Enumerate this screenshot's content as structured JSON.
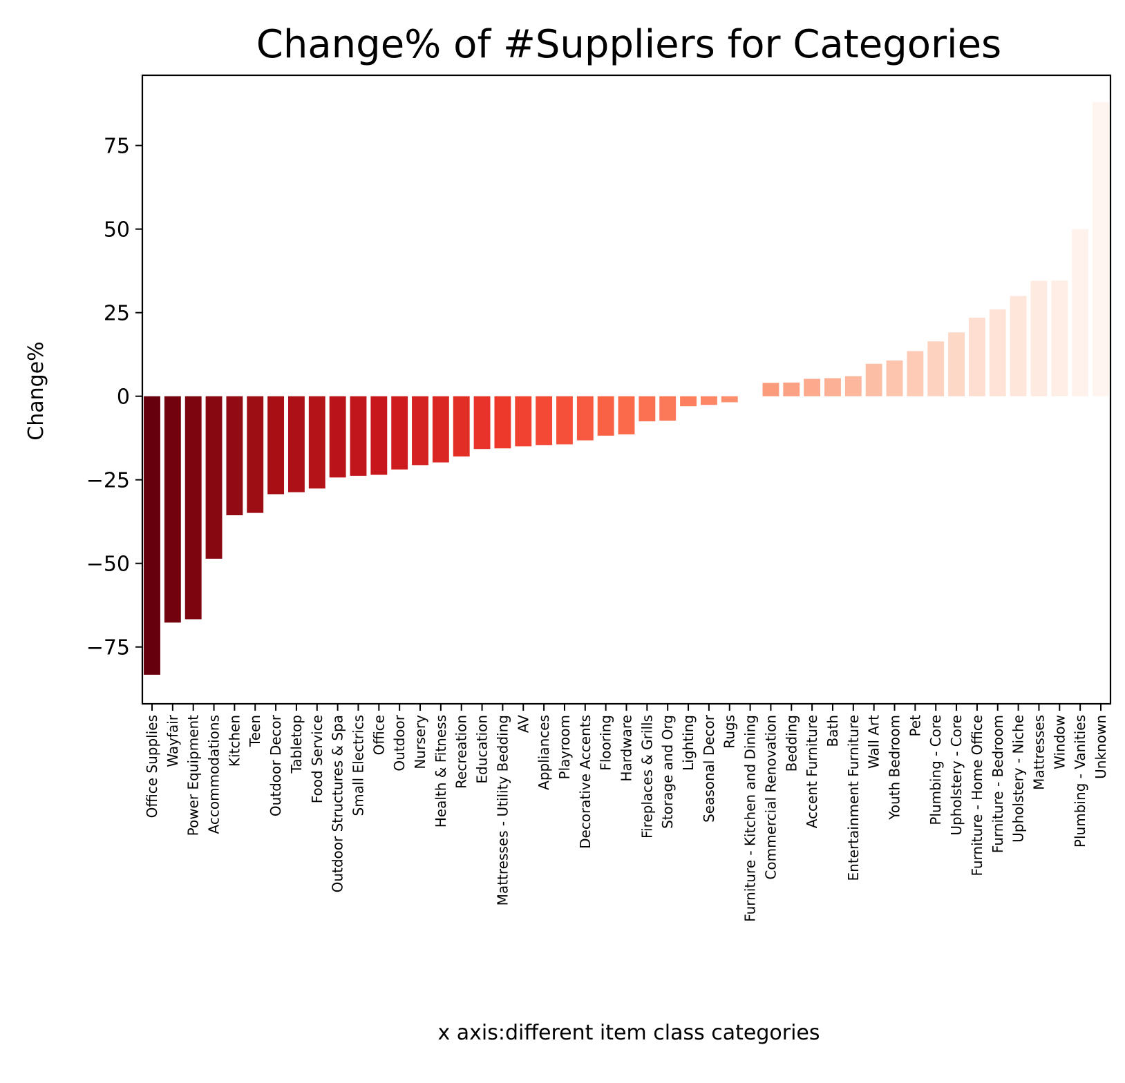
{
  "chart_data": {
    "type": "bar",
    "title": "Change% of #Suppliers for Categories",
    "xlabel": "x axis:different item class categories",
    "ylabel": "Change%",
    "ylim": [
      -92,
      96
    ],
    "yticks": [
      -75,
      -50,
      -25,
      0,
      25,
      50,
      75
    ],
    "ytick_labels": [
      "−75",
      "−50",
      "−25",
      "0",
      "25",
      "50",
      "75"
    ],
    "grid": false,
    "legend": "none",
    "colormap": "reds-reversed",
    "categories": [
      "Office Supplies",
      "Wayfair",
      "Power Equipment",
      "Accommodations",
      "Kitchen",
      "Teen",
      "Outdoor Decor",
      "Tabletop",
      "Food Service",
      "Outdoor Structures & Spa",
      "Small Electrics",
      "Office",
      "Outdoor",
      "Nursery",
      "Health & Fitness",
      "Recreation",
      "Education",
      "Mattresses - Utility Bedding",
      "AV",
      "Appliances",
      "Playroom",
      "Decorative Accents",
      "Flooring",
      "Hardware",
      "Fireplaces & Grills",
      "Storage and Org",
      "Lighting",
      "Seasonal Decor",
      "Rugs",
      "Furniture - Kitchen and Dining",
      "Commercial Renovation",
      "Bedding",
      "Accent Furniture",
      "Bath",
      "Entertainment Furniture",
      "Wall Art",
      "Youth Bedroom",
      "Pet",
      "Plumbing - Core",
      "Upholstery - Core",
      "Furniture - Home Office",
      "Furniture - Bedroom",
      "Upholstery - Niche",
      "Mattresses",
      "Window",
      "Plumbing - Vanities",
      "Unknown"
    ],
    "values": [
      -83.3,
      -67.7,
      -66.7,
      -48.6,
      -35.6,
      -34.9,
      -29.3,
      -28.7,
      -27.6,
      -24.3,
      -23.8,
      -23.5,
      -21.9,
      -20.6,
      -19.8,
      -18.0,
      -15.8,
      -15.6,
      -15.0,
      -14.6,
      -14.4,
      -13.2,
      -11.8,
      -11.4,
      -7.5,
      -7.3,
      -3.0,
      -2.6,
      -1.8,
      0.0,
      4.0,
      4.1,
      5.2,
      5.4,
      6.0,
      9.7,
      10.7,
      13.5,
      16.4,
      19.1,
      23.5,
      26.0,
      30.0,
      34.5,
      34.6,
      50.0,
      88.0
    ]
  }
}
